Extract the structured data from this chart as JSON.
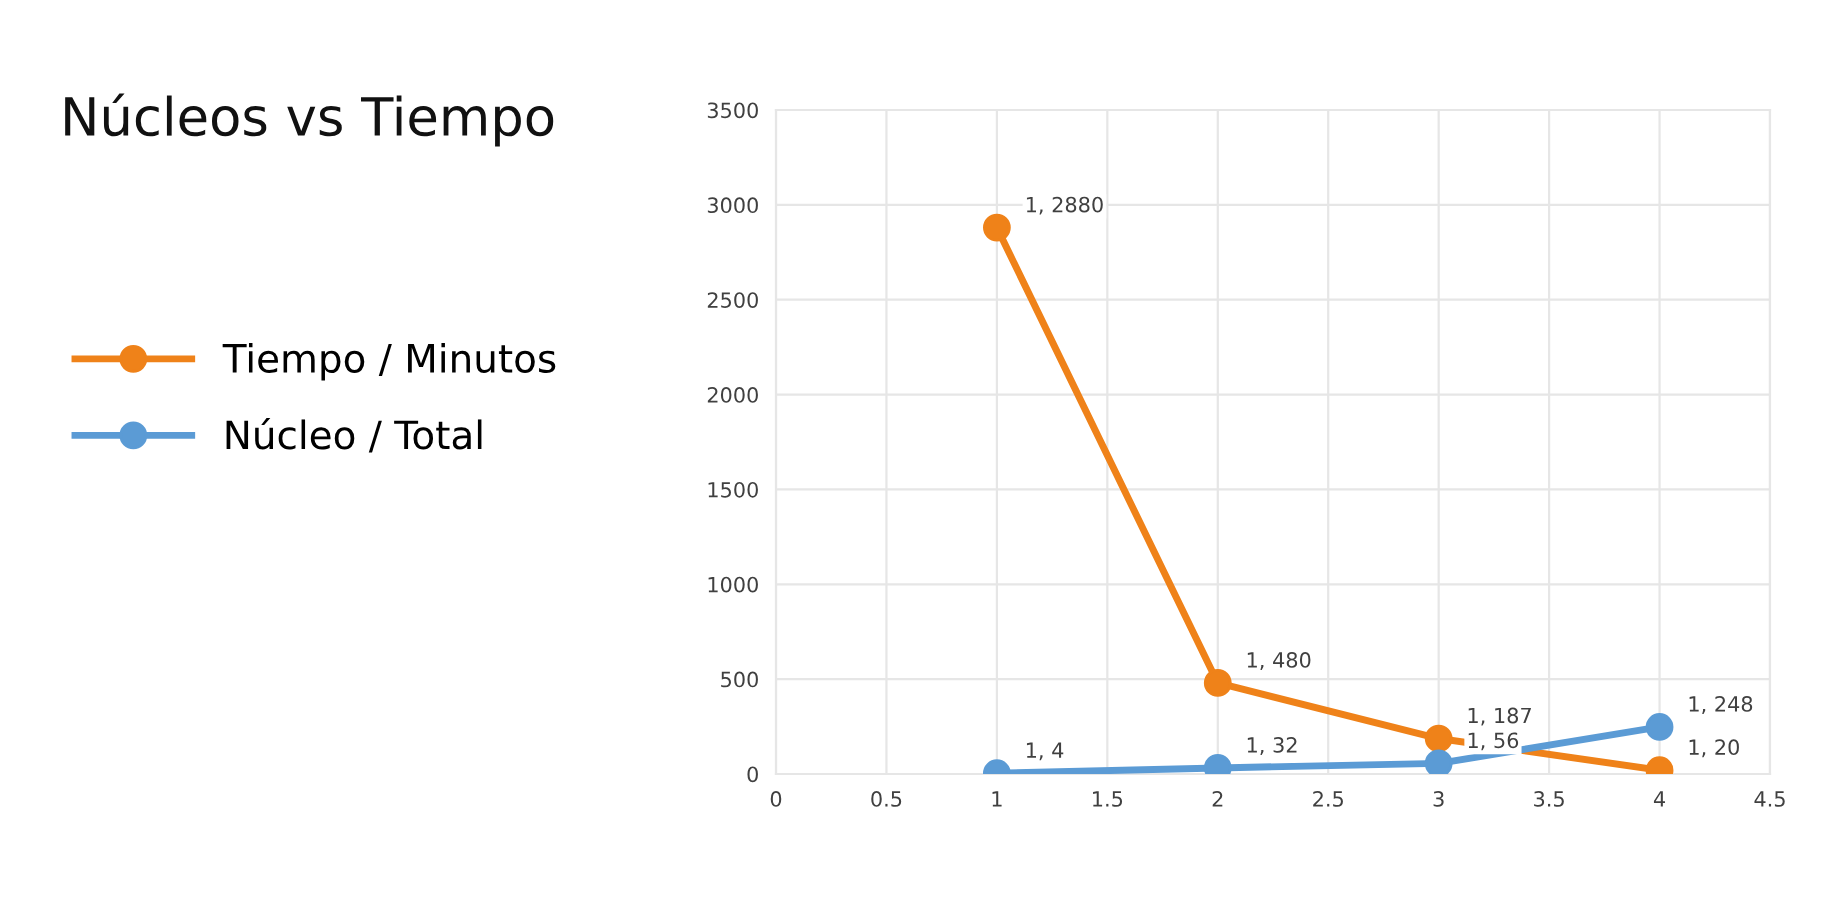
{
  "chart_data": {
    "type": "line",
    "title": "Núcleos vs Tiempo",
    "x": [
      1,
      2,
      3,
      4
    ],
    "series": [
      {
        "name": "Tiempo / Minutos",
        "color": "#ef8219",
        "values": [
          2880,
          480,
          187,
          20
        ],
        "value_labels": [
          "1, 2880",
          "1, 480",
          "1, 187",
          "1, 20"
        ]
      },
      {
        "name": "Núcleo / Total",
        "color": "#5b9bd5",
        "values": [
          4,
          32,
          56,
          248
        ],
        "value_labels": [
          "1, 4",
          "1, 32",
          "1, 56",
          "1, 248"
        ]
      }
    ],
    "xlim": [
      0,
      4.5
    ],
    "xticks": [
      0,
      0.5,
      1,
      1.5,
      2,
      2.5,
      3,
      3.5,
      4,
      4.5
    ],
    "ylim": [
      0,
      3500
    ],
    "yticks": [
      0,
      500,
      1000,
      1500,
      2000,
      2500,
      3000,
      3500
    ],
    "grid": true,
    "legend": "left",
    "marker": "circle",
    "line_style": "solid"
  }
}
